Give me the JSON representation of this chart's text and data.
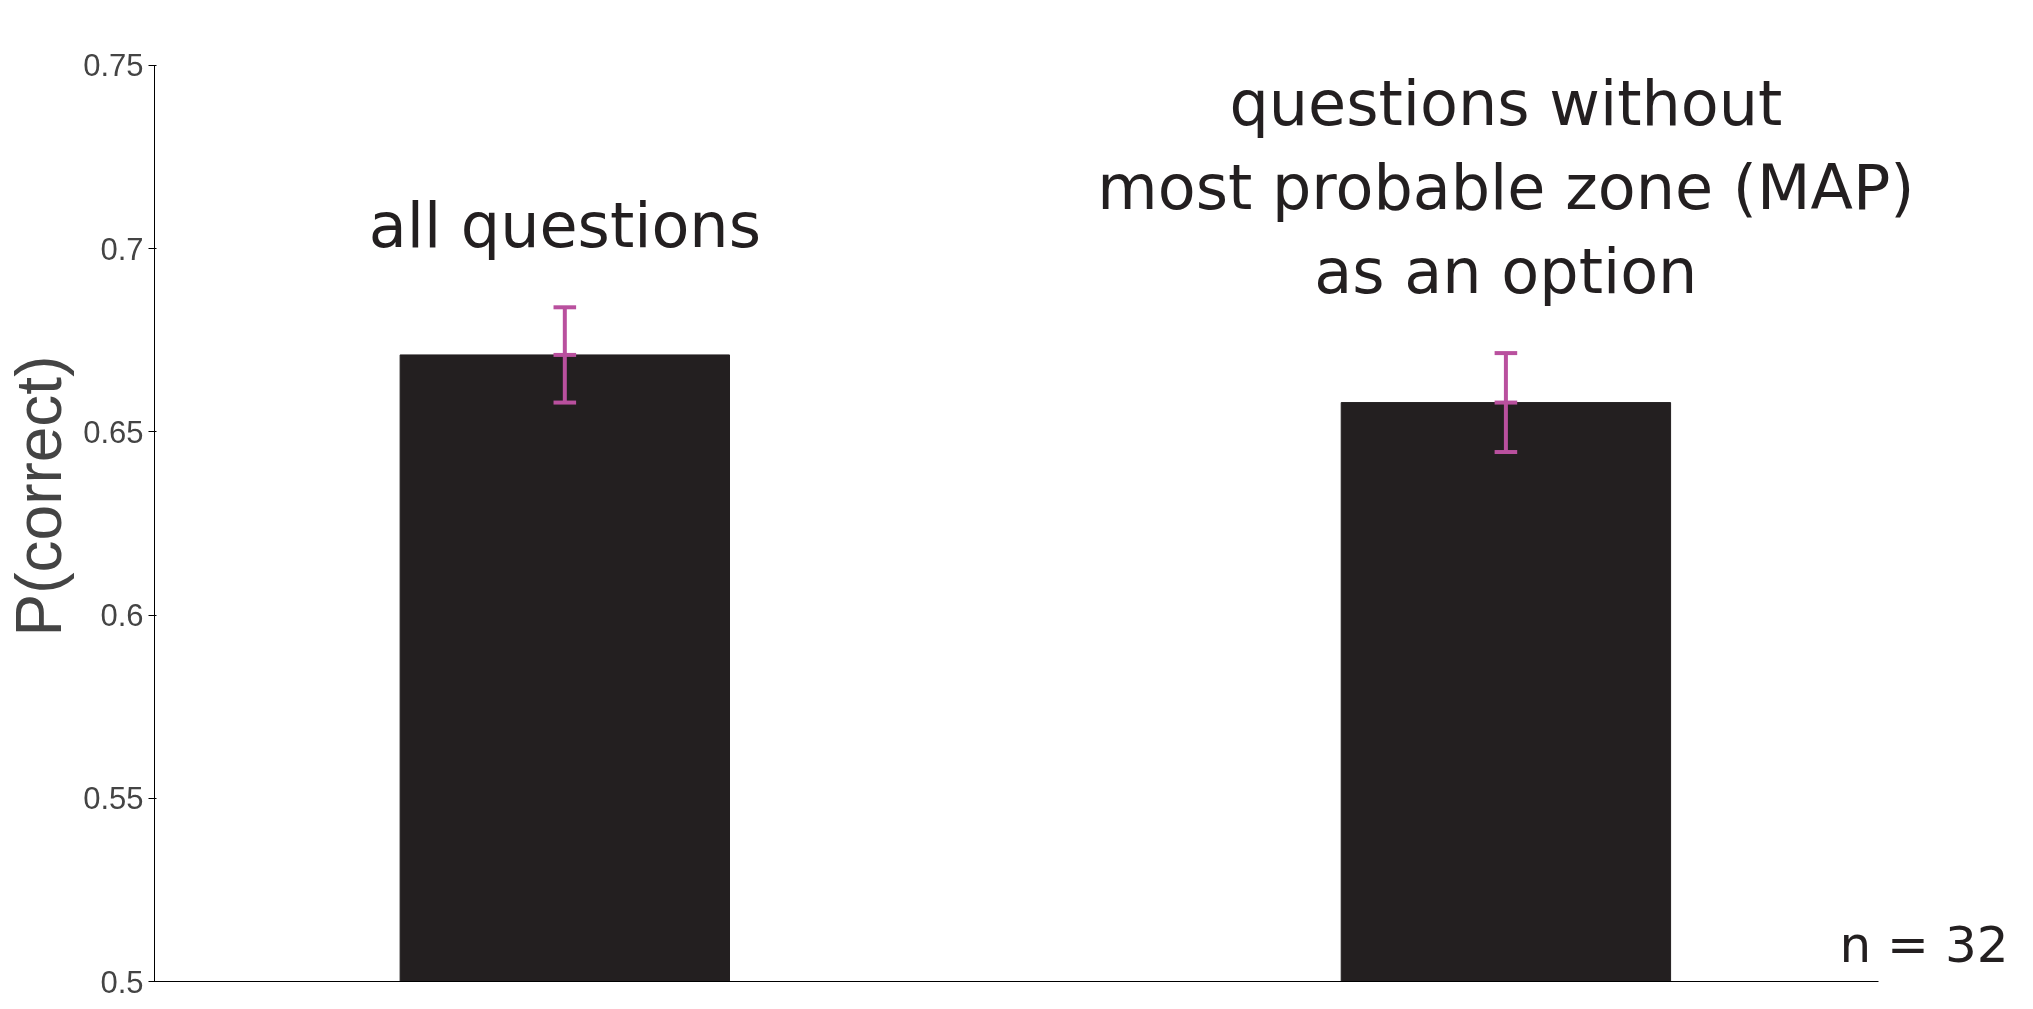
{
  "chart_data": {
    "type": "bar",
    "ylabel": "P(correct)",
    "categories": [
      "all questions",
      "questions without\nmost probable zone (MAP)\nas an option"
    ],
    "series": [
      {
        "color": "#231f20",
        "values": [
          0.671,
          0.658
        ],
        "errors": [
          0.013,
          0.0135
        ]
      }
    ],
    "ylim": [
      0.5,
      0.75
    ],
    "yticks": [
      0.5,
      0.55,
      0.6,
      0.65,
      0.7,
      0.75
    ],
    "grid": false,
    "annotations": [
      "n = 32"
    ]
  }
}
